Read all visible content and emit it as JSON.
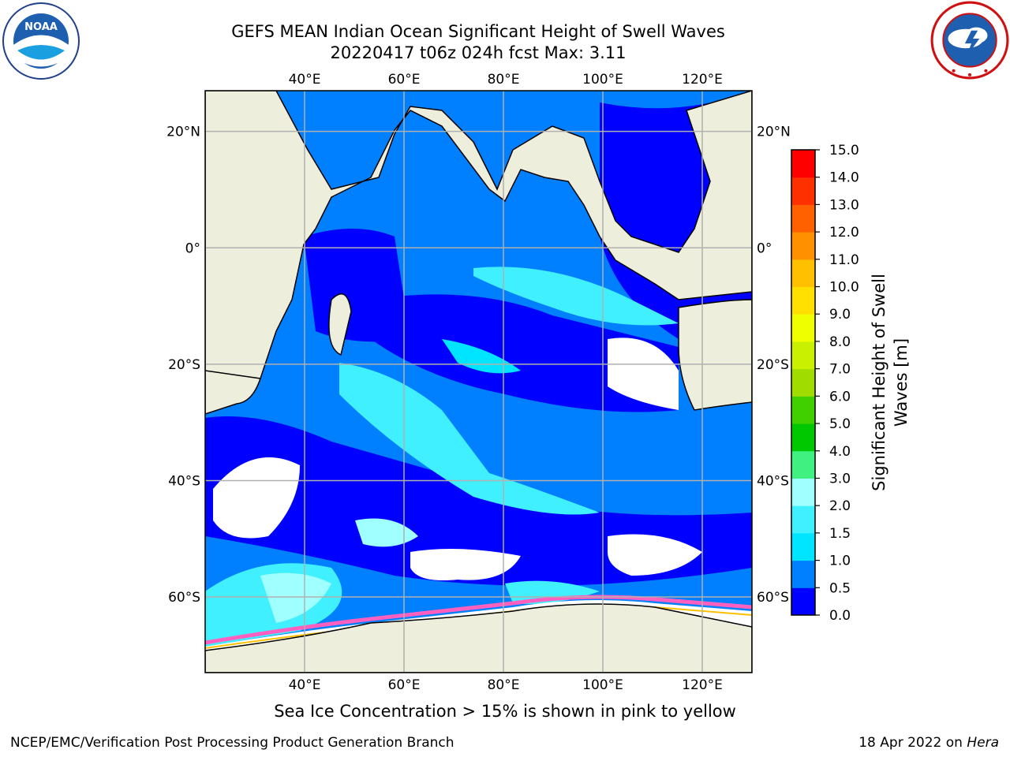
{
  "title": {
    "line1": "GEFS MEAN Indian Ocean Significant Height of Swell Waves",
    "line2": "20220417 t06z 024h fcst   Max: 3.11"
  },
  "logos": {
    "left": {
      "name": "noaa-logo",
      "text": "NOAA",
      "ring_text": "NATIONAL OCEANIC AND ATMOSPHERIC ADMINISTRATION · U.S. DEPARTMENT OF COMMERCE"
    },
    "right": {
      "name": "nws-logo",
      "ring_text": "NATIONAL WEATHER SERVICE"
    }
  },
  "map": {
    "projection": "cylindrical",
    "lon_range": [
      20,
      130
    ],
    "lat_range": [
      -73,
      27
    ],
    "grid": true,
    "lon_ticks": [
      {
        "value": 40,
        "label": "40°E"
      },
      {
        "value": 60,
        "label": "60°E"
      },
      {
        "value": 80,
        "label": "80°E"
      },
      {
        "value": 100,
        "label": "100°E"
      },
      {
        "value": 120,
        "label": "120°E"
      }
    ],
    "lat_ticks": [
      {
        "value": 20,
        "label": "20°N"
      },
      {
        "value": 0,
        "label": "0°"
      },
      {
        "value": -20,
        "label": "20°S"
      },
      {
        "value": -40,
        "label": "40°S"
      },
      {
        "value": -60,
        "label": "60°S"
      }
    ],
    "colors": {
      "land": "#eeeedd",
      "no_data": "#ffffff",
      "grid": "#b0b0b0"
    }
  },
  "colorbar": {
    "title_line1": "Significant Height of Swell",
    "title_line2": "Waves [m]",
    "levels": [
      "0.0",
      "0.5",
      "1.0",
      "1.5",
      "2.0",
      "3.0",
      "4.0",
      "5.0",
      "6.0",
      "7.0",
      "8.0",
      "9.0",
      "10.0",
      "11.0",
      "12.0",
      "13.0",
      "14.0",
      "15.0"
    ],
    "colors": [
      "#0000ff",
      "#0080ff",
      "#00e5ff",
      "#40f0ff",
      "#a0ffff",
      "#40f080",
      "#00c800",
      "#40d000",
      "#a0dc00",
      "#c8f000",
      "#f0ff00",
      "#ffe000",
      "#ffc000",
      "#ff9000",
      "#ff6000",
      "#ff3000",
      "#ff0000"
    ]
  },
  "caption": "Sea Ice Concentration > 15% is shown in pink to yellow",
  "footer": {
    "left": "NCEP/EMC/Verification Post Processing Product Generation Branch",
    "right_date": "18 Apr 2022 on ",
    "right_host": "Hera"
  }
}
